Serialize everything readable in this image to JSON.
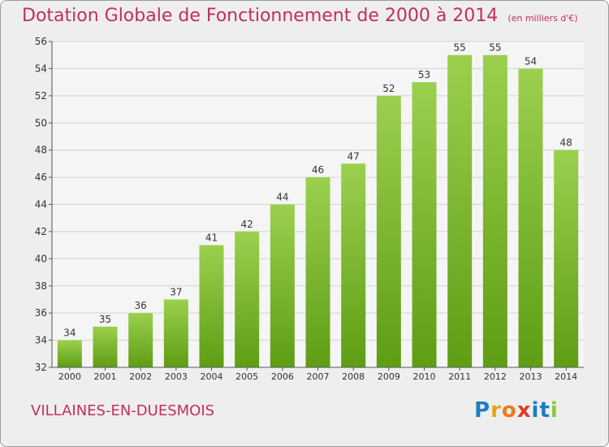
{
  "header": {
    "title": "Dotation Globale de Fonctionnement de 2000 à 2014",
    "unit": "(en milliers d'€)"
  },
  "footer": {
    "commune": "VILLAINES-EN-DUESMOIS",
    "logo_letters": [
      "P",
      "r",
      "o",
      "x",
      "i",
      "t",
      "i"
    ],
    "logo_colors": [
      "#1a7fc1",
      "#e8a21a",
      "#f07a1a",
      "#e23a2a",
      "#1a7fc1",
      "#1a7fc1",
      "#8bc53f"
    ]
  },
  "colors": {
    "accent": "#c0305a",
    "bar_top": "#9bd04e",
    "bar_bottom": "#5e9d14",
    "plot_bg": "#f5f5f5",
    "grid": "#d4d4d4"
  },
  "chart_data": {
    "type": "bar",
    "title": "Dotation Globale de Fonctionnement de 2000 à 2014",
    "subtitle": "(en milliers d'€)",
    "categories": [
      "2000",
      "2001",
      "2002",
      "2003",
      "2004",
      "2005",
      "2006",
      "2007",
      "2008",
      "2009",
      "2010",
      "2011",
      "2012",
      "2013",
      "2014"
    ],
    "values": [
      34,
      35,
      36,
      37,
      41,
      42,
      44,
      46,
      47,
      52,
      53,
      55,
      55,
      54,
      48
    ],
    "ylim": [
      32,
      56
    ],
    "yticks": [
      32,
      34,
      36,
      38,
      40,
      42,
      44,
      46,
      48,
      50,
      52,
      54,
      56
    ],
    "grid": true,
    "data_labels": true,
    "xlabel": "",
    "ylabel": ""
  }
}
